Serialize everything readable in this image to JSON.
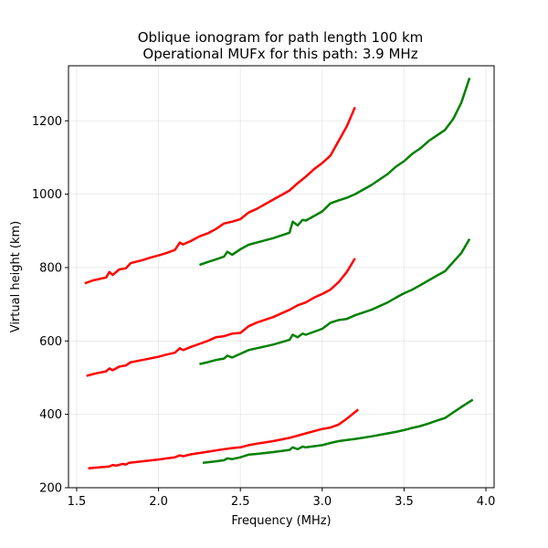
{
  "chart_data": {
    "type": "line",
    "title": "Oblique ionogram for path length 100 km",
    "subtitle": "Operational MUFx for this path: 3.9 MHz",
    "xlabel": "Frequency (MHz)",
    "ylabel": "Virtual height (km)",
    "xlim": [
      1.45,
      4.05
    ],
    "ylim": [
      200,
      1350
    ],
    "xticks": [
      1.5,
      2.0,
      2.5,
      3.0,
      3.5,
      4.0
    ],
    "xtick_labels": [
      "1.5",
      "2.0",
      "2.5",
      "3.0",
      "3.5",
      "4.0"
    ],
    "yticks": [
      200,
      400,
      600,
      800,
      1000,
      1200
    ],
    "ytick_labels": [
      "200",
      "400",
      "600",
      "800",
      "1000",
      "1200"
    ],
    "grid": true,
    "colors": {
      "red_trace": "#ff0000",
      "green_trace": "#008000"
    },
    "series": [
      {
        "color": "red",
        "x": [
          1.57,
          1.65,
          1.7,
          1.72,
          1.74,
          1.78,
          1.8,
          1.82,
          1.9,
          2.0,
          2.05,
          2.1,
          2.13,
          2.15,
          2.2,
          2.3,
          2.4,
          2.45,
          2.5,
          2.55,
          2.6,
          2.7,
          2.8,
          2.85,
          2.9,
          2.95,
          3.0,
          3.05,
          3.1,
          3.15,
          3.22
        ],
        "y": [
          253,
          256,
          258,
          262,
          260,
          265,
          263,
          268,
          272,
          277,
          280,
          283,
          288,
          286,
          291,
          298,
          305,
          308,
          310,
          316,
          320,
          327,
          336,
          342,
          348,
          354,
          360,
          364,
          372,
          388,
          413
        ]
      },
      {
        "color": "red",
        "x": [
          1.56,
          1.62,
          1.68,
          1.7,
          1.72,
          1.76,
          1.8,
          1.83,
          1.9,
          2.0,
          2.05,
          2.1,
          2.13,
          2.15,
          2.2,
          2.25,
          2.3,
          2.35,
          2.4,
          2.45,
          2.5,
          2.55,
          2.6,
          2.7,
          2.8,
          2.85,
          2.9,
          2.95,
          3.0,
          3.05,
          3.1,
          3.15,
          3.2
        ],
        "y": [
          505,
          512,
          517,
          525,
          520,
          530,
          533,
          542,
          548,
          557,
          563,
          568,
          580,
          575,
          584,
          592,
          600,
          610,
          613,
          620,
          622,
          640,
          650,
          665,
          685,
          697,
          705,
          718,
          728,
          740,
          760,
          788,
          825
        ]
      },
      {
        "color": "red",
        "x": [
          1.55,
          1.6,
          1.68,
          1.7,
          1.72,
          1.76,
          1.8,
          1.83,
          1.9,
          1.95,
          2.0,
          2.05,
          2.1,
          2.13,
          2.15,
          2.2,
          2.25,
          2.3,
          2.35,
          2.4,
          2.45,
          2.5,
          2.55,
          2.6,
          2.7,
          2.8,
          2.85,
          2.9,
          2.95,
          3.0,
          3.05,
          3.1,
          3.15,
          3.2
        ],
        "y": [
          757,
          765,
          773,
          788,
          780,
          795,
          798,
          812,
          820,
          827,
          833,
          840,
          848,
          868,
          863,
          873,
          885,
          893,
          905,
          920,
          925,
          932,
          950,
          960,
          985,
          1010,
          1030,
          1048,
          1068,
          1085,
          1105,
          1145,
          1185,
          1237
        ]
      },
      {
        "color": "green",
        "x": [
          2.27,
          2.35,
          2.4,
          2.42,
          2.45,
          2.5,
          2.55,
          2.6,
          2.7,
          2.8,
          2.82,
          2.85,
          2.88,
          2.9,
          3.0,
          3.05,
          3.1,
          3.15,
          3.2,
          3.3,
          3.4,
          3.45,
          3.5,
          3.55,
          3.6,
          3.65,
          3.7,
          3.75,
          3.8,
          3.85,
          3.92
        ],
        "y": [
          268,
          272,
          275,
          280,
          278,
          283,
          290,
          292,
          297,
          303,
          310,
          305,
          312,
          310,
          316,
          322,
          327,
          330,
          333,
          340,
          348,
          352,
          357,
          363,
          368,
          375,
          383,
          390,
          405,
          420,
          440
        ]
      },
      {
        "color": "green",
        "x": [
          2.25,
          2.3,
          2.35,
          2.4,
          2.42,
          2.45,
          2.5,
          2.55,
          2.6,
          2.7,
          2.8,
          2.82,
          2.85,
          2.88,
          2.9,
          3.0,
          3.05,
          3.1,
          3.15,
          3.2,
          3.3,
          3.4,
          3.45,
          3.5,
          3.55,
          3.6,
          3.65,
          3.7,
          3.75,
          3.8,
          3.85,
          3.9
        ],
        "y": [
          537,
          542,
          548,
          552,
          560,
          555,
          565,
          575,
          580,
          590,
          603,
          617,
          610,
          620,
          617,
          633,
          650,
          657,
          660,
          670,
          685,
          705,
          718,
          730,
          740,
          752,
          765,
          778,
          790,
          815,
          840,
          878
        ]
      },
      {
        "color": "green",
        "x": [
          2.25,
          2.3,
          2.35,
          2.4,
          2.42,
          2.45,
          2.5,
          2.55,
          2.6,
          2.7,
          2.8,
          2.82,
          2.85,
          2.88,
          2.9,
          3.0,
          3.05,
          3.1,
          3.15,
          3.2,
          3.3,
          3.4,
          3.45,
          3.5,
          3.55,
          3.6,
          3.65,
          3.7,
          3.75,
          3.8,
          3.85,
          3.9
        ],
        "y": [
          807,
          815,
          822,
          830,
          843,
          835,
          850,
          862,
          868,
          880,
          895,
          925,
          915,
          930,
          928,
          953,
          975,
          983,
          990,
          1000,
          1025,
          1055,
          1075,
          1090,
          1110,
          1125,
          1145,
          1160,
          1175,
          1205,
          1250,
          1317
        ]
      }
    ]
  }
}
